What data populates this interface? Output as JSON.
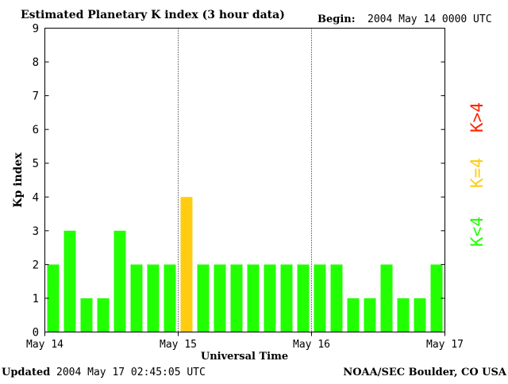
{
  "header": {
    "title": "Estimated Planetary K index (3 hour data)",
    "begin_label": "Begin:",
    "begin_value": "2004 May 14 0000 UTC"
  },
  "footer": {
    "updated_label": "Updated",
    "updated_value": "2004 May 17 02:45:05 UTC",
    "source": "NOAA/SEC Boulder, CO USA"
  },
  "legend": {
    "low": "K<4",
    "mid": "K=4",
    "high": "K>4"
  },
  "colors": {
    "low": "#22ff00",
    "mid": "#ffcc11",
    "high": "#ff2200",
    "grid": "#000000"
  },
  "chart_data": {
    "type": "bar",
    "title": "Estimated Planetary K index (3 hour data)",
    "xlabel": "Universal Time",
    "ylabel": "Kp index",
    "ylim": [
      0,
      9
    ],
    "yticks": [
      0,
      1,
      2,
      3,
      4,
      5,
      6,
      7,
      8,
      9
    ],
    "xticks": [
      "May 14",
      "May 15",
      "May 16",
      "May 17"
    ],
    "bars_per_day": 8,
    "values": [
      2,
      3,
      1,
      1,
      3,
      2,
      2,
      2,
      4,
      2,
      2,
      2,
      2,
      2,
      2,
      2,
      2,
      2,
      1,
      1,
      2,
      1,
      1,
      2
    ],
    "legend_placement": "right"
  }
}
